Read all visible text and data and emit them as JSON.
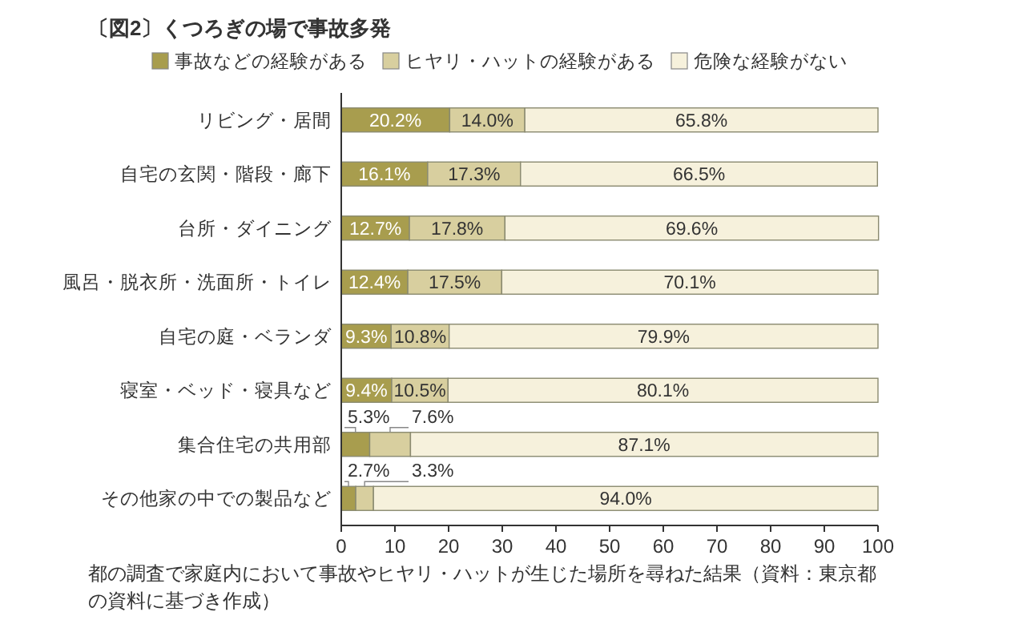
{
  "chart_data": {
    "type": "bar",
    "orientation": "horizontal",
    "stacked": true,
    "title": "〔図2〕くつろぎの場で事故多発",
    "categories": [
      "リビング・居間",
      "自宅の玄関・階段・廊下",
      "台所・ダイニング",
      "風呂・脱衣所・洗面所・トイレ",
      "自宅の庭・ベランダ",
      "寝室・ベッド・寝具など",
      "集合住宅の共用部",
      "その他家の中での製品など"
    ],
    "series": [
      {
        "name": "事故などの経験がある",
        "color": "#a89d4e",
        "values": [
          20.2,
          16.1,
          12.7,
          12.4,
          9.3,
          9.4,
          5.3,
          2.7
        ],
        "value_labels": [
          "20.2%",
          "16.1%",
          "12.7%",
          "12.4%",
          "9.3%",
          "9.4%",
          "5.3%",
          "2.7%"
        ]
      },
      {
        "name": "ヒヤリ・ハットの経験がある",
        "color": "#d8cf9f",
        "values": [
          14.0,
          17.3,
          17.8,
          17.5,
          10.8,
          10.5,
          7.6,
          3.3
        ],
        "value_labels": [
          "14.0%",
          "17.3%",
          "17.8%",
          "17.5%",
          "10.8%",
          "10.5%",
          "7.6%",
          "3.3%"
        ]
      },
      {
        "name": "危険な経験がない",
        "color": "#f6f1dc",
        "values": [
          65.8,
          66.5,
          69.6,
          70.1,
          79.9,
          80.1,
          87.1,
          94.0
        ],
        "value_labels": [
          "65.8%",
          "66.5%",
          "69.6%",
          "70.1%",
          "79.9%",
          "80.1%",
          "87.1%",
          "94.0%"
        ]
      }
    ],
    "xlim": [
      0,
      100
    ],
    "xticks": [
      0,
      10,
      20,
      30,
      40,
      50,
      60,
      70,
      80,
      90,
      100
    ],
    "legend": "top left",
    "annotations": [
      "都の調査で家庭内において事故やヒヤリ・ハットが生じた場所を尋ねた結果（資料：東京都の資料に基づき作成）"
    ]
  }
}
